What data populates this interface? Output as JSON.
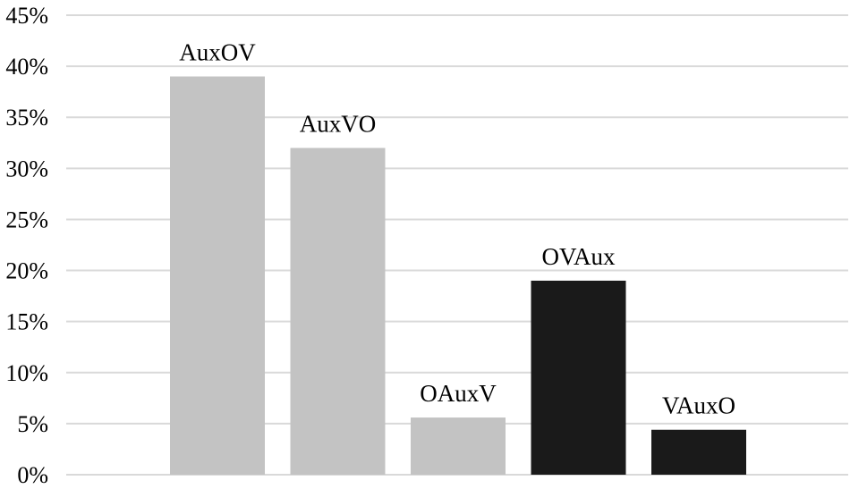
{
  "chart_data": {
    "type": "bar",
    "title": "",
    "xlabel": "",
    "ylabel": "",
    "categories": [
      "AuxOV",
      "AuxVO",
      "OAuxV",
      "OVAux",
      "VAuxO"
    ],
    "values": [
      39,
      32,
      5.6,
      19,
      4.4
    ],
    "bar_colors": [
      "#c3c3c3",
      "#c3c3c3",
      "#c3c3c3",
      "#1a1a1a",
      "#1a1a1a"
    ],
    "ylim": [
      0,
      45
    ],
    "yticks": [
      0,
      5,
      10,
      15,
      20,
      25,
      30,
      35,
      40,
      45
    ],
    "ytick_labels": [
      "0%",
      "5%",
      "10%",
      "15%",
      "20%",
      "25%",
      "30%",
      "35%",
      "40%",
      "45%"
    ],
    "grid": true,
    "legend": "none",
    "data_labels": "category name above each bar"
  }
}
